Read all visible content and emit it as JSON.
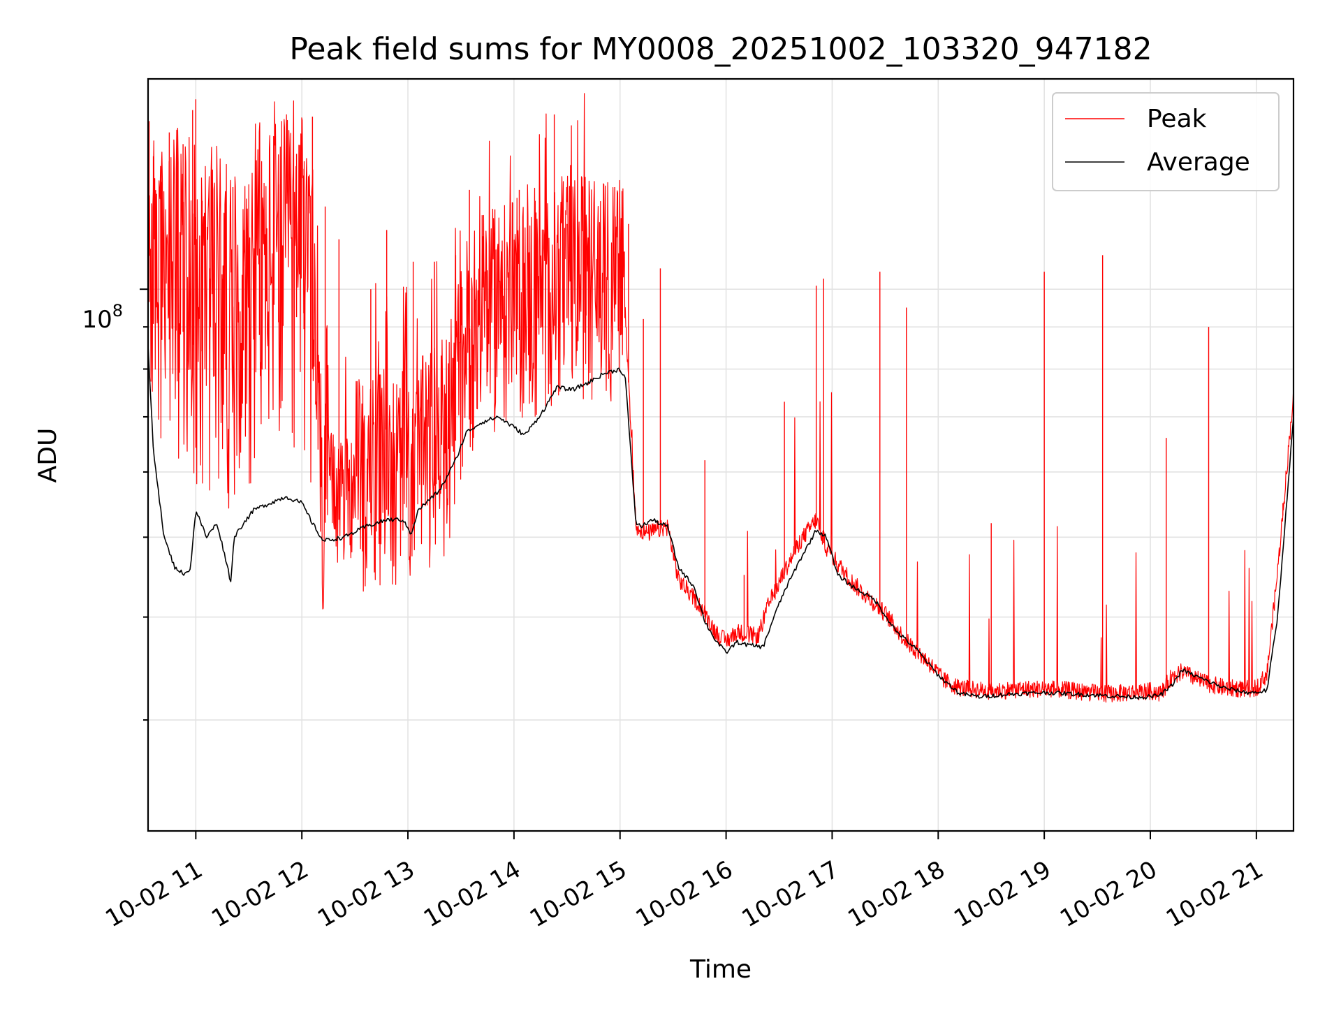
{
  "chart_data": {
    "type": "line",
    "title": "Peak field sums for MY0008_20251002_103320_947182",
    "xlabel": "Time",
    "ylabel": "ADU",
    "yscale": "log",
    "xlim": [
      10.55,
      21.35
    ],
    "ylim": [
      22000000,
      180000000
    ],
    "grid": true,
    "legend_position": "top-right",
    "x_ticks": [
      {
        "value": 11,
        "label": "10-02 11"
      },
      {
        "value": 12,
        "label": "10-02 12"
      },
      {
        "value": 13,
        "label": "10-02 13"
      },
      {
        "value": 14,
        "label": "10-02 14"
      },
      {
        "value": 15,
        "label": "10-02 15"
      },
      {
        "value": 16,
        "label": "10-02 16"
      },
      {
        "value": 17,
        "label": "10-02 17"
      },
      {
        "value": 18,
        "label": "10-02 18"
      },
      {
        "value": 19,
        "label": "10-02 19"
      },
      {
        "value": 20,
        "label": "10-02 20"
      },
      {
        "value": 21,
        "label": "10-02 21"
      }
    ],
    "y_major_tick": {
      "value": 100000000,
      "label_base": "10",
      "label_exponent": "8"
    },
    "y_minor_grid": [
      30000000,
      40000000,
      50000000,
      60000000,
      70000000,
      80000000,
      90000000
    ],
    "series": [
      {
        "name": "Peak",
        "color": "#ff0000",
        "baseline": {
          "x": [
            10.55,
            10.62,
            10.72,
            10.85,
            10.95,
            11.05,
            11.2,
            11.32,
            11.38,
            11.5,
            11.7,
            11.9,
            12.0,
            12.1,
            12.2,
            12.5,
            12.8,
            13.0,
            13.05,
            13.2,
            13.4,
            13.55,
            13.7,
            13.9,
            14.0,
            14.2,
            14.45,
            14.7,
            14.9,
            15.05,
            15.15,
            15.25,
            15.45,
            15.55,
            15.75,
            15.9,
            16.0,
            16.1,
            16.3,
            16.4,
            16.55,
            16.7,
            16.85,
            16.95,
            17.05,
            17.2,
            17.5,
            17.7,
            17.9,
            18.05,
            18.2,
            18.5,
            18.8,
            19.1,
            19.4,
            19.55,
            19.7,
            20.0,
            20.1,
            20.2,
            20.3,
            20.5,
            20.7,
            20.9,
            21.0,
            21.1,
            21.2,
            21.35
          ],
          "y": [
            98000000,
            88000000,
            86000000,
            90000000,
            86000000,
            84000000,
            85000000,
            80000000,
            82000000,
            86000000,
            90000000,
            93000000,
            92000000,
            80000000,
            52000000,
            53000000,
            54000000,
            55000000,
            54000000,
            57000000,
            60000000,
            78000000,
            84000000,
            85000000,
            87000000,
            86000000,
            92000000,
            93000000,
            91000000,
            92000000,
            51000000,
            50000000,
            51000000,
            44000000,
            41000000,
            38000000,
            37000000,
            38000000,
            37500000,
            41000000,
            45000000,
            49000000,
            52000000,
            48000000,
            46000000,
            43500000,
            40000000,
            37000000,
            35000000,
            33200000,
            32500000,
            32200000,
            32400000,
            32400000,
            32100000,
            32000000,
            32000000,
            32200000,
            32000000,
            33500000,
            34000000,
            33000000,
            32500000,
            32400000,
            32500000,
            33800000,
            45000000,
            74000000
          ]
        },
        "spikes": [
          {
            "x": 10.56,
            "y": 160000000
          },
          {
            "x": 10.6,
            "y": 145000000
          },
          {
            "x": 10.68,
            "y": 135000000
          },
          {
            "x": 10.75,
            "y": 155000000
          },
          {
            "x": 10.82,
            "y": 138000000
          },
          {
            "x": 10.88,
            "y": 150000000
          },
          {
            "x": 10.97,
            "y": 165000000
          },
          {
            "x": 11.0,
            "y": 170000000
          },
          {
            "x": 11.06,
            "y": 128000000
          },
          {
            "x": 11.13,
            "y": 106000000
          },
          {
            "x": 11.25,
            "y": 103000000
          },
          {
            "x": 11.35,
            "y": 133000000
          },
          {
            "x": 11.45,
            "y": 118000000
          },
          {
            "x": 11.6,
            "y": 112000000
          },
          {
            "x": 11.78,
            "y": 134000000
          },
          {
            "x": 11.95,
            "y": 146000000
          },
          {
            "x": 12.02,
            "y": 140000000
          },
          {
            "x": 12.1,
            "y": 162000000
          },
          {
            "x": 12.22,
            "y": 126000000
          },
          {
            "x": 12.35,
            "y": 115000000
          },
          {
            "x": 12.65,
            "y": 100000000
          },
          {
            "x": 12.8,
            "y": 118000000
          },
          {
            "x": 13.05,
            "y": 108000000
          },
          {
            "x": 13.25,
            "y": 108000000
          },
          {
            "x": 13.45,
            "y": 110000000
          },
          {
            "x": 13.58,
            "y": 132000000
          },
          {
            "x": 13.7,
            "y": 123000000
          },
          {
            "x": 13.82,
            "y": 125000000
          },
          {
            "x": 14.05,
            "y": 132000000
          },
          {
            "x": 14.2,
            "y": 128000000
          },
          {
            "x": 14.38,
            "y": 163000000
          },
          {
            "x": 14.5,
            "y": 120000000
          },
          {
            "x": 14.68,
            "y": 118000000
          },
          {
            "x": 14.95,
            "y": 133000000
          },
          {
            "x": 15.08,
            "y": 120000000
          },
          {
            "x": 15.22,
            "y": 92000000
          },
          {
            "x": 15.38,
            "y": 106000000
          },
          {
            "x": 15.8,
            "y": 62000000
          },
          {
            "x": 16.17,
            "y": 45000000
          },
          {
            "x": 16.55,
            "y": 73000000
          },
          {
            "x": 16.85,
            "y": 101000000
          },
          {
            "x": 16.92,
            "y": 103000000
          },
          {
            "x": 17.45,
            "y": 105000000
          },
          {
            "x": 17.7,
            "y": 95000000
          },
          {
            "x": 18.5,
            "y": 52000000
          },
          {
            "x": 19.0,
            "y": 105000000
          },
          {
            "x": 19.55,
            "y": 110000000
          },
          {
            "x": 20.15,
            "y": 66000000
          },
          {
            "x": 20.55,
            "y": 90000000
          },
          {
            "x": 21.25,
            "y": 55000000
          }
        ]
      },
      {
        "name": "Average",
        "color": "#000000",
        "x": [
          10.55,
          10.6,
          10.7,
          10.8,
          10.9,
          10.95,
          11.0,
          11.1,
          11.2,
          11.3,
          11.33,
          11.36,
          11.45,
          11.55,
          11.7,
          11.85,
          12.0,
          12.1,
          12.2,
          12.4,
          12.6,
          12.8,
          12.95,
          13.03,
          13.1,
          13.3,
          13.45,
          13.55,
          13.7,
          13.85,
          14.0,
          14.1,
          14.2,
          14.3,
          14.4,
          14.55,
          14.7,
          14.85,
          15.0,
          15.05,
          15.15,
          15.2,
          15.3,
          15.45,
          15.55,
          15.7,
          15.8,
          15.9,
          16.0,
          16.1,
          16.2,
          16.35,
          16.45,
          16.55,
          16.7,
          16.85,
          16.95,
          17.05,
          17.2,
          17.4,
          17.6,
          17.8,
          18.0,
          18.2,
          18.4,
          18.6,
          18.8,
          19.0,
          19.2,
          19.4,
          19.6,
          19.8,
          20.0,
          20.1,
          20.2,
          20.3,
          20.5,
          20.7,
          20.9,
          21.0,
          21.1,
          21.2,
          21.35
        ],
        "y": [
          85000000,
          64000000,
          50000000,
          46000000,
          45000000,
          46000000,
          54000000,
          50000000,
          52000000,
          46000000,
          44000000,
          50000000,
          52000000,
          54000000,
          55000000,
          56000000,
          55000000,
          52000000,
          49500000,
          50000000,
          51500000,
          52500000,
          52500000,
          50500000,
          54000000,
          57000000,
          62000000,
          67000000,
          69000000,
          70000000,
          68000000,
          66500000,
          69000000,
          72000000,
          76000000,
          75500000,
          77000000,
          79000000,
          80000000,
          78000000,
          52000000,
          51500000,
          52500000,
          51500000,
          46000000,
          43500000,
          39500000,
          37500000,
          36200000,
          37300000,
          37000000,
          36800000,
          40000000,
          43000000,
          47000000,
          51000000,
          50000000,
          45000000,
          43500000,
          42000000,
          38500000,
          36500000,
          34000000,
          32300000,
          32000000,
          32200000,
          32300000,
          32400000,
          32300000,
          32200000,
          32100000,
          32000000,
          32000000,
          32200000,
          33000000,
          34500000,
          33600000,
          32800000,
          32400000,
          32400000,
          32600000,
          40000000,
          70000000
        ]
      }
    ]
  }
}
